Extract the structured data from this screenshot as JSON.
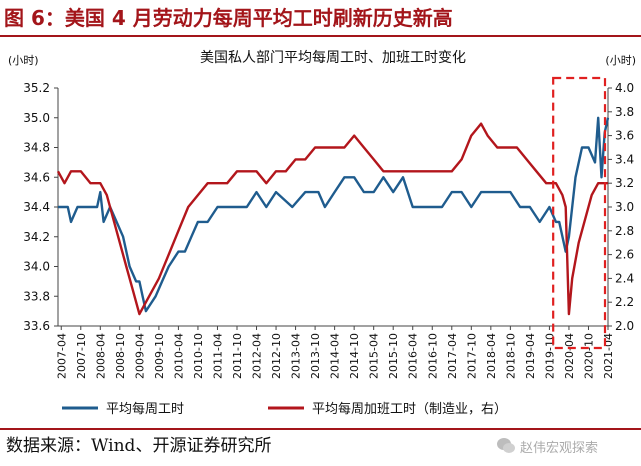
{
  "figure": {
    "title": "图 6：美国 4 月劳动力每周平均工时刷新历史新高",
    "source": "数据来源：Wind、开源证券研究所",
    "watermark": "赵伟宏观探索"
  },
  "chart_data": {
    "type": "line",
    "title": "美国私人部门平均每周工时、加班工时变化",
    "left_unit": "(小时)",
    "right_unit": "(小时)",
    "y_left": {
      "min": 33.6,
      "max": 35.2,
      "ticks": [
        "33.6",
        "33.8",
        "34.0",
        "34.2",
        "34.4",
        "34.6",
        "34.8",
        "35.0",
        "35.2"
      ]
    },
    "y_right": {
      "min": 2.0,
      "max": 4.0,
      "ticks": [
        "2.0",
        "2.2",
        "2.4",
        "2.6",
        "2.8",
        "3.0",
        "3.2",
        "3.4",
        "3.6",
        "3.8",
        "4.0"
      ]
    },
    "x_ticks": [
      "2007-04",
      "2007-10",
      "2008-04",
      "2008-10",
      "2009-04",
      "2009-10",
      "2010-04",
      "2010-10",
      "2011-04",
      "2011-10",
      "2012-04",
      "2012-10",
      "2013-04",
      "2013-10",
      "2014-04",
      "2014-10",
      "2015-04",
      "2015-10",
      "2016-04",
      "2016-10",
      "2017-04",
      "2017-10",
      "2018-04",
      "2018-10",
      "2019-04",
      "2019-10",
      "2020-04",
      "2020-10",
      "2021-04"
    ],
    "x_range": [
      "2007-03",
      "2021-04"
    ],
    "highlight_box": {
      "from": "2020-01",
      "to": "2021-04",
      "style": "dashed",
      "color": "#e02020"
    },
    "series": [
      {
        "name": "平均每周工时",
        "axis": "left",
        "color": "#1f5c8e",
        "points": [
          [
            "2007-03",
            34.4
          ],
          [
            "2007-06",
            34.4
          ],
          [
            "2007-07",
            34.3
          ],
          [
            "2007-09",
            34.4
          ],
          [
            "2007-12",
            34.4
          ],
          [
            "2008-03",
            34.4
          ],
          [
            "2008-04",
            34.5
          ],
          [
            "2008-05",
            34.3
          ],
          [
            "2008-07",
            34.4
          ],
          [
            "2008-09",
            34.3
          ],
          [
            "2008-11",
            34.2
          ],
          [
            "2009-01",
            34.0
          ],
          [
            "2009-03",
            33.9
          ],
          [
            "2009-04",
            33.9
          ],
          [
            "2009-05",
            33.8
          ],
          [
            "2009-06",
            33.7
          ],
          [
            "2009-09",
            33.8
          ],
          [
            "2009-11",
            33.9
          ],
          [
            "2010-01",
            34.0
          ],
          [
            "2010-04",
            34.1
          ],
          [
            "2010-06",
            34.1
          ],
          [
            "2010-08",
            34.2
          ],
          [
            "2010-10",
            34.3
          ],
          [
            "2011-01",
            34.3
          ],
          [
            "2011-04",
            34.4
          ],
          [
            "2011-10",
            34.4
          ],
          [
            "2012-01",
            34.4
          ],
          [
            "2012-04",
            34.5
          ],
          [
            "2012-07",
            34.4
          ],
          [
            "2012-10",
            34.5
          ],
          [
            "2013-03",
            34.4
          ],
          [
            "2013-07",
            34.5
          ],
          [
            "2013-11",
            34.5
          ],
          [
            "2014-01",
            34.4
          ],
          [
            "2014-04",
            34.5
          ],
          [
            "2014-07",
            34.6
          ],
          [
            "2014-10",
            34.6
          ],
          [
            "2015-01",
            34.5
          ],
          [
            "2015-04",
            34.5
          ],
          [
            "2015-07",
            34.6
          ],
          [
            "2015-10",
            34.5
          ],
          [
            "2016-01",
            34.6
          ],
          [
            "2016-04",
            34.4
          ],
          [
            "2016-07",
            34.4
          ],
          [
            "2016-10",
            34.4
          ],
          [
            "2017-01",
            34.4
          ],
          [
            "2017-04",
            34.5
          ],
          [
            "2017-07",
            34.5
          ],
          [
            "2017-10",
            34.4
          ],
          [
            "2018-01",
            34.5
          ],
          [
            "2018-04",
            34.5
          ],
          [
            "2018-07",
            34.5
          ],
          [
            "2018-10",
            34.5
          ],
          [
            "2019-01",
            34.4
          ],
          [
            "2019-04",
            34.4
          ],
          [
            "2019-07",
            34.3
          ],
          [
            "2019-10",
            34.4
          ],
          [
            "2019-12",
            34.3
          ],
          [
            "2020-01",
            34.3
          ],
          [
            "2020-03",
            34.1
          ],
          [
            "2020-04",
            34.2
          ],
          [
            "2020-06",
            34.6
          ],
          [
            "2020-08",
            34.8
          ],
          [
            "2020-10",
            34.8
          ],
          [
            "2020-12",
            34.7
          ],
          [
            "2021-01",
            35.0
          ],
          [
            "2021-02",
            34.6
          ],
          [
            "2021-03",
            34.9
          ],
          [
            "2021-04",
            35.0
          ]
        ]
      },
      {
        "name": "平均每周加班工时（制造业，右）",
        "axis": "right",
        "color": "#b3161c",
        "points": [
          [
            "2007-03",
            3.3
          ],
          [
            "2007-05",
            3.2
          ],
          [
            "2007-07",
            3.3
          ],
          [
            "2007-10",
            3.3
          ],
          [
            "2008-01",
            3.2
          ],
          [
            "2008-04",
            3.2
          ],
          [
            "2008-06",
            3.1
          ],
          [
            "2008-08",
            2.9
          ],
          [
            "2008-10",
            2.7
          ],
          [
            "2008-12",
            2.5
          ],
          [
            "2009-02",
            2.3
          ],
          [
            "2009-04",
            2.1
          ],
          [
            "2009-06",
            2.2
          ],
          [
            "2009-08",
            2.3
          ],
          [
            "2009-10",
            2.4
          ],
          [
            "2010-01",
            2.6
          ],
          [
            "2010-04",
            2.8
          ],
          [
            "2010-07",
            3.0
          ],
          [
            "2010-10",
            3.1
          ],
          [
            "2011-01",
            3.2
          ],
          [
            "2011-04",
            3.2
          ],
          [
            "2011-07",
            3.2
          ],
          [
            "2011-10",
            3.3
          ],
          [
            "2012-01",
            3.3
          ],
          [
            "2012-04",
            3.3
          ],
          [
            "2012-07",
            3.2
          ],
          [
            "2012-10",
            3.3
          ],
          [
            "2013-01",
            3.3
          ],
          [
            "2013-04",
            3.4
          ],
          [
            "2013-07",
            3.4
          ],
          [
            "2013-10",
            3.5
          ],
          [
            "2014-01",
            3.5
          ],
          [
            "2014-04",
            3.5
          ],
          [
            "2014-07",
            3.5
          ],
          [
            "2014-10",
            3.6
          ],
          [
            "2015-01",
            3.5
          ],
          [
            "2015-04",
            3.4
          ],
          [
            "2015-07",
            3.3
          ],
          [
            "2015-10",
            3.3
          ],
          [
            "2016-01",
            3.3
          ],
          [
            "2016-04",
            3.3
          ],
          [
            "2016-07",
            3.3
          ],
          [
            "2016-10",
            3.3
          ],
          [
            "2017-01",
            3.3
          ],
          [
            "2017-04",
            3.3
          ],
          [
            "2017-07",
            3.4
          ],
          [
            "2017-10",
            3.6
          ],
          [
            "2018-01",
            3.7
          ],
          [
            "2018-03",
            3.6
          ],
          [
            "2018-06",
            3.5
          ],
          [
            "2018-09",
            3.5
          ],
          [
            "2018-12",
            3.5
          ],
          [
            "2019-03",
            3.4
          ],
          [
            "2019-06",
            3.3
          ],
          [
            "2019-09",
            3.2
          ],
          [
            "2019-12",
            3.2
          ],
          [
            "2020-02",
            3.1
          ],
          [
            "2020-03",
            3.0
          ],
          [
            "2020-04",
            2.1
          ],
          [
            "2020-05",
            2.4
          ],
          [
            "2020-07",
            2.7
          ],
          [
            "2020-09",
            2.9
          ],
          [
            "2020-11",
            3.1
          ],
          [
            "2021-01",
            3.2
          ],
          [
            "2021-04",
            3.2
          ]
        ]
      }
    ]
  }
}
